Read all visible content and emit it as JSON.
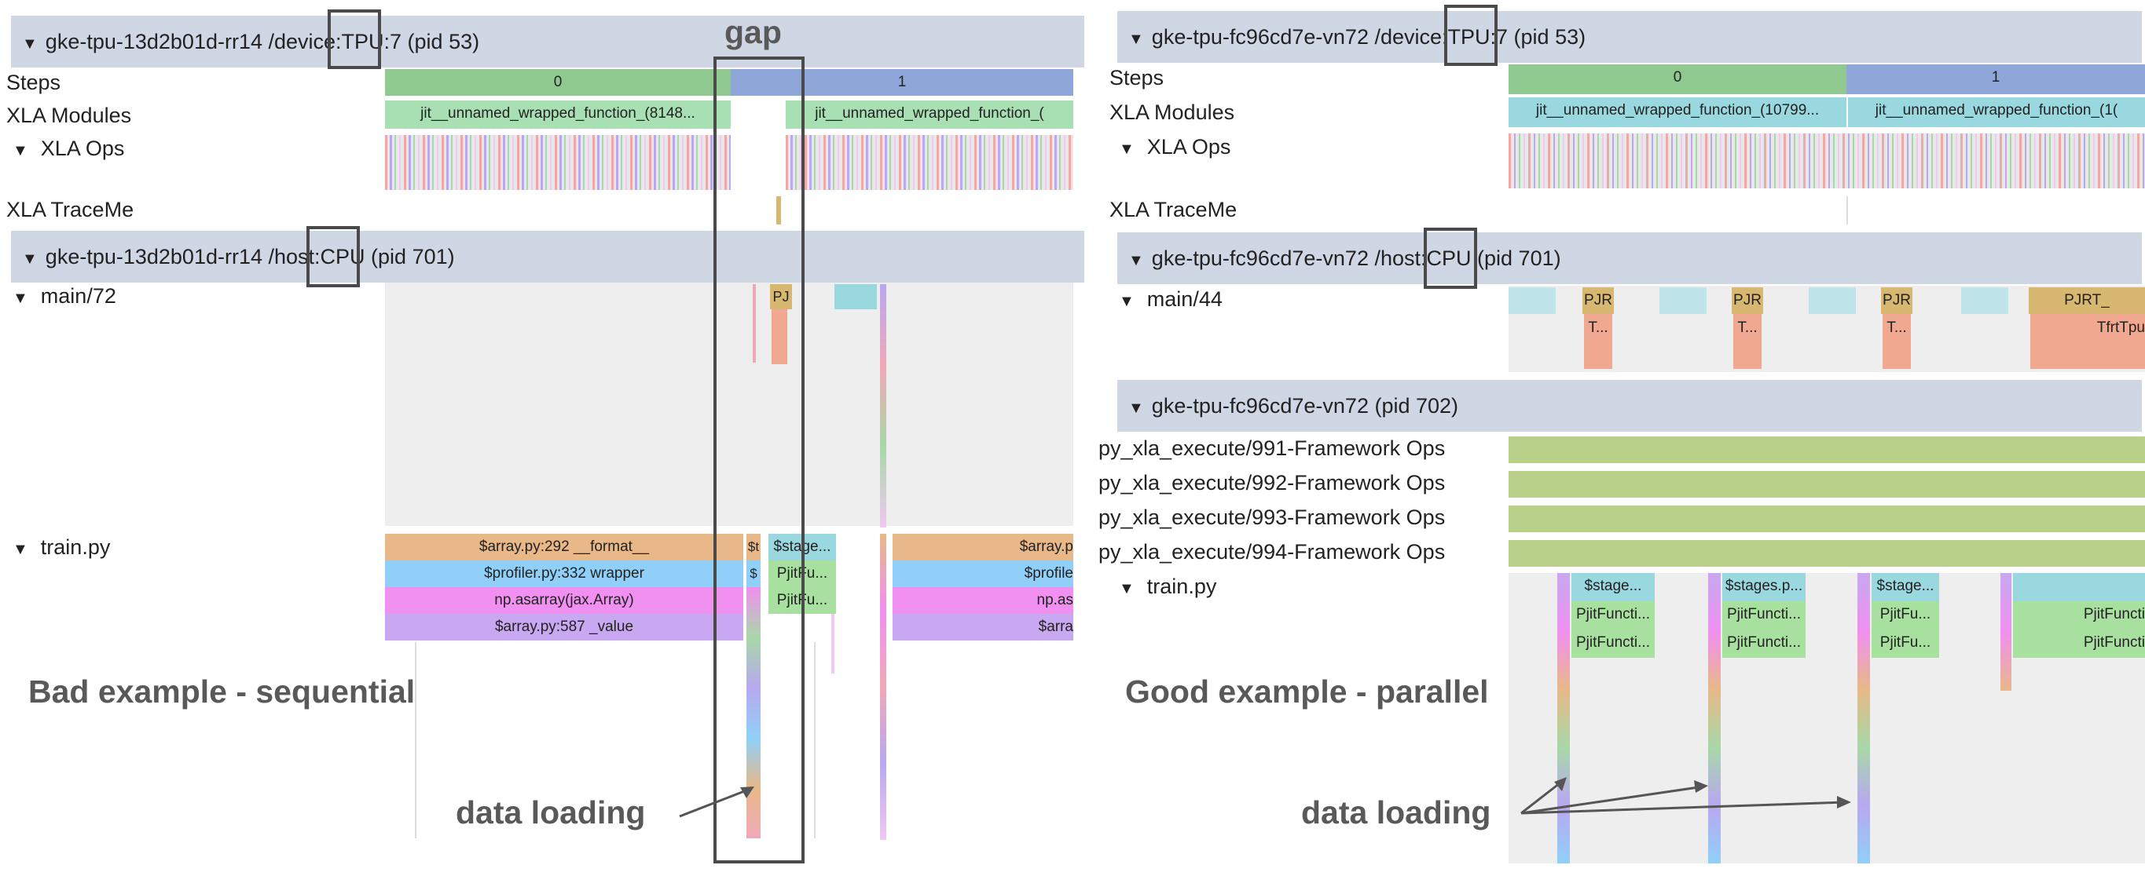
{
  "left": {
    "tpu_header": {
      "prefix": "gke-tpu-13d2b01d-rr14 /device:",
      "device": "TPU",
      "suffix": ":7 (pid 53)"
    },
    "rows": {
      "steps": "Steps",
      "modules": "XLA Modules",
      "ops": "XLA Ops",
      "traceme": "XLA TraceMe"
    },
    "steps": [
      "0",
      "1"
    ],
    "modules": [
      "jit__unnamed_wrapped_function_(8148...",
      "jit__unnamed_wrapped_function_("
    ],
    "cpu_header": {
      "prefix": "gke-tpu-13d2b01d-rr14 /host:",
      "device": "CPU",
      "suffix": " (pid 701)"
    },
    "main_thread": "main/72",
    "main_small": "PJ",
    "train_thread": "train.py",
    "train_stack": [
      "$array.py:292 __format__",
      "$profiler.py:332 wrapper",
      "np.asarray(jax.Array)",
      "$array.py:587 _value"
    ],
    "train_right": [
      "$array.p",
      "$profile",
      "np.as",
      "$arra"
    ],
    "train_small_a": [
      "$t",
      "$"
    ],
    "train_small_b": [
      "$stage...",
      "PjitFu...",
      "PjitFu..."
    ],
    "annotation": "Bad example - sequential",
    "gap_label": "gap",
    "data_loading": "data loading"
  },
  "right": {
    "tpu_header": {
      "prefix": "gke-tpu-fc96cd7e-vn72 /device:",
      "device": "TPU",
      "suffix": ":7 (pid 53)"
    },
    "rows": {
      "steps": "Steps",
      "modules": "XLA Modules",
      "ops": "XLA Ops",
      "traceme": "XLA TraceMe"
    },
    "steps": [
      "0",
      "1"
    ],
    "modules": [
      "jit__unnamed_wrapped_function_(10799...",
      "jit__unnamed_wrapped_function_(1("
    ],
    "cpu_header": {
      "prefix": "gke-tpu-fc96cd7e-vn72 /host:",
      "device": "CPU",
      "suffix": " (pid 701)"
    },
    "main_thread": "main/44",
    "main_pjr": [
      "PJR",
      "PJR",
      "PJR",
      "PJRT_"
    ],
    "main_t": [
      "T...",
      "T...",
      "T...",
      "TfrtTpu"
    ],
    "pid_header": "gke-tpu-fc96cd7e-vn72 (pid 702)",
    "framework_rows": [
      "py_xla_execute/991-Framework Ops",
      "py_xla_execute/992-Framework Ops",
      "py_xla_execute/993-Framework Ops",
      "py_xla_execute/994-Framework Ops"
    ],
    "train_thread": "train.py",
    "train_stage": [
      "$stage...",
      "$stages.p...",
      "$stage...",
      ""
    ],
    "train_pjit1": [
      "PjitFuncti...",
      "PjitFuncti...",
      "PjitFu...",
      "PjitFuncti"
    ],
    "train_pjit2": [
      "PjitFuncti...",
      "PjitFuncti...",
      "PjitFu...",
      "PjitFuncti"
    ],
    "annotation": "Good example - parallel",
    "data_loading": "data loading"
  },
  "colors": {
    "header": "#cfd6e4",
    "step0": "#90c990",
    "step1": "#8ea6d8",
    "module_green": "#a8e0b4",
    "module_cyan": "#9ad8e0",
    "orange": "#e8b888",
    "blue": "#90d0f8",
    "pink": "#f090f0",
    "purple": "#c8a8f0",
    "green": "#b8d088"
  }
}
